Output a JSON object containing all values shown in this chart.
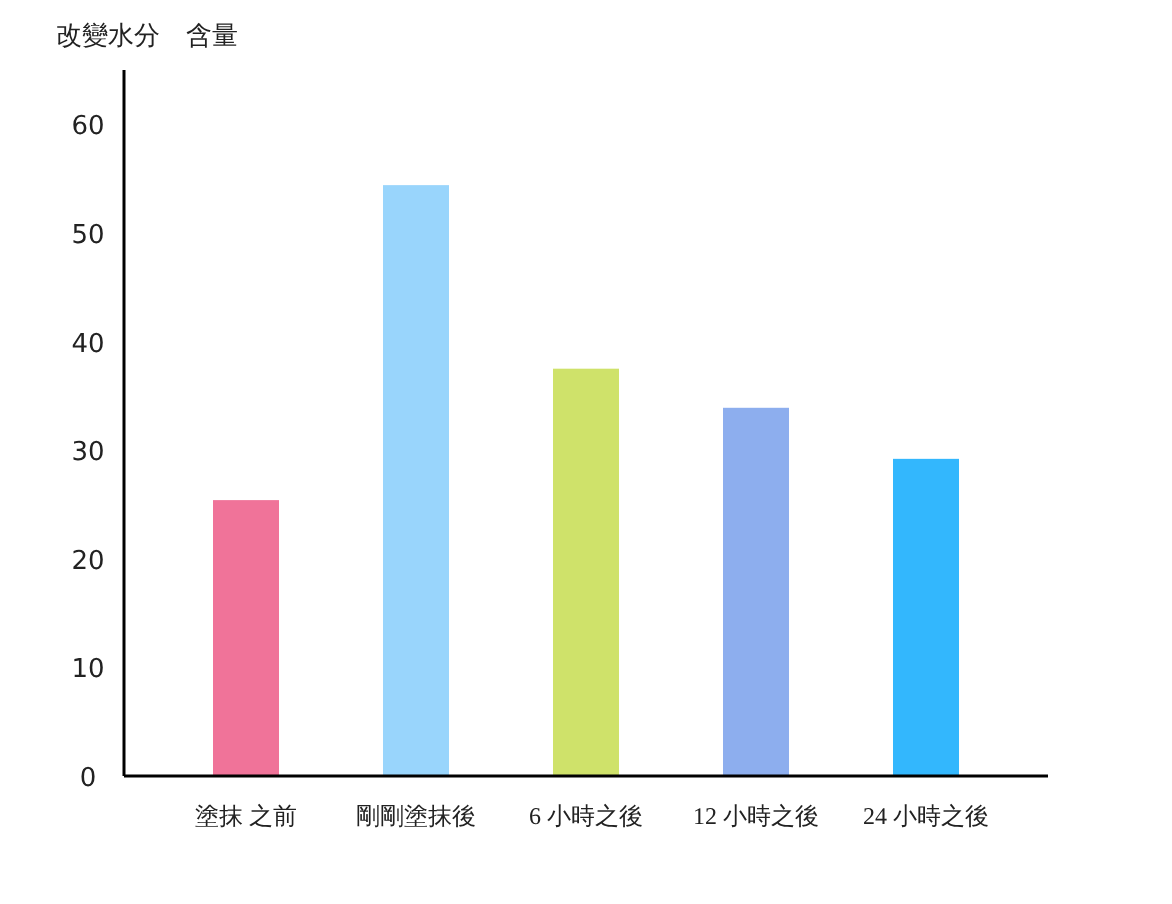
{
  "chart_data": {
    "type": "bar",
    "ylabel": "改變水分　含量",
    "categories": [
      "塗抹 之前",
      "剛剛塗抹後",
      "6 小時之後",
      "12 小時之後",
      "24 小時之後"
    ],
    "values": [
      25.4,
      54.4,
      37.5,
      33.9,
      29.2
    ],
    "colors": [
      "#f07399",
      "#99d5fc",
      "#cfe26a",
      "#8daeee",
      "#33b7fd"
    ],
    "ylim": [
      0,
      65
    ],
    "yticks": [
      0,
      10,
      20,
      30,
      40,
      50,
      60
    ],
    "grid": false
  }
}
